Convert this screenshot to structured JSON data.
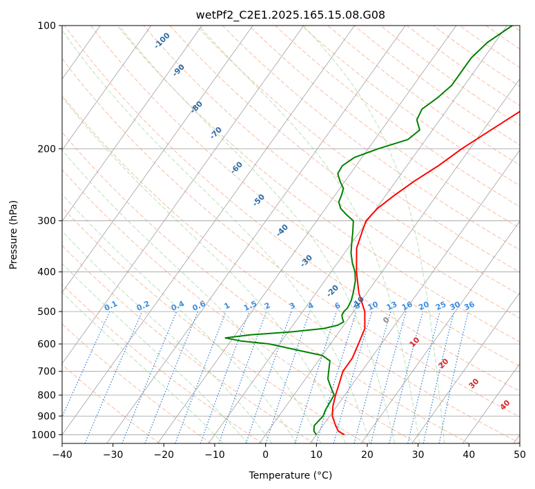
{
  "chart_data": {
    "type": "line",
    "title": "wetPf2_C2E1.2025.165.15.08.G08",
    "xlabel": "Temperature (°C)",
    "ylabel": "Pressure (hPa)",
    "xlim": [
      -40,
      50
    ],
    "ylim": [
      1050,
      100
    ],
    "y_scale": "log",
    "grid": true,
    "x_ticks": [
      -40,
      -30,
      -20,
      -10,
      0,
      10,
      20,
      30,
      40,
      50
    ],
    "y_ticks": [
      1000,
      900,
      800,
      700,
      600,
      500,
      400,
      300,
      200,
      100
    ],
    "colors": {
      "temperature": "#ff0000",
      "dewpoint": "#008000",
      "dry_adiabat": "#f4a582",
      "moist_adiabat": "#a6d8a6",
      "mixing_ratio": "#1f77d4",
      "isotherm": "#9e9e9e",
      "lcl_label": "#2b6ca3",
      "warm_label": "#d62728"
    },
    "series": [
      {
        "role": "temperature",
        "p": [
          1000,
          980,
          950,
          900,
          850,
          800,
          750,
          700,
          650,
          600,
          550,
          500,
          450,
          400,
          350,
          320,
          300,
          280,
          260,
          240,
          220,
          200,
          180,
          160,
          140,
          120,
          110,
          100
        ],
        "t": [
          15.5,
          13.8,
          12.5,
          10.5,
          9.2,
          8.2,
          7.3,
          6.3,
          6.3,
          5.5,
          4.6,
          2.2,
          -1.6,
          -5.0,
          -8.3,
          -9.5,
          -10.3,
          -9.8,
          -8.3,
          -6.4,
          -3.8,
          -1.6,
          1.5,
          5.0,
          10.0,
          15.0,
          17.5,
          20.5
        ]
      },
      {
        "role": "dewpoint",
        "p": [
          1000,
          980,
          950,
          900,
          870,
          850,
          800,
          760,
          730,
          700,
          680,
          660,
          640,
          620,
          600,
          590,
          580,
          570,
          560,
          550,
          540,
          530,
          520,
          510,
          500,
          490,
          470,
          450,
          420,
          400,
          380,
          360,
          340,
          320,
          300,
          290,
          280,
          270,
          260,
          250,
          240,
          230,
          220,
          210,
          200,
          190,
          180,
          170,
          160,
          150,
          140,
          130,
          120,
          110,
          100
        ],
        "t": [
          10.0,
          9.0,
          8.3,
          8.7,
          8.3,
          8.2,
          7.9,
          5.9,
          4.4,
          3.5,
          2.9,
          2.3,
          0.0,
          -6.0,
          -12.0,
          -18.0,
          -21.5,
          -17.0,
          -9.0,
          -3.5,
          -1.2,
          -0.5,
          -1.2,
          -1.8,
          -1.9,
          -1.7,
          -2.0,
          -2.7,
          -4.0,
          -5.3,
          -7.1,
          -8.7,
          -10.0,
          -11.3,
          -12.8,
          -15.0,
          -17.0,
          -18.3,
          -18.7,
          -19.3,
          -21.0,
          -22.5,
          -22.7,
          -21.5,
          -18.0,
          -13.5,
          -12.5,
          -14.5,
          -15.0,
          -13.5,
          -12.5,
          -12.5,
          -12.5,
          -11.5,
          -9.0
        ]
      }
    ],
    "reference_lines": {
      "dry_adiabats_theta_K": [
        250,
        260,
        270,
        280,
        290,
        300,
        310,
        320,
        330,
        340,
        350,
        360,
        370,
        380,
        390,
        400,
        410,
        420,
        430,
        440,
        450,
        460,
        470,
        480,
        490,
        500,
        510
      ],
      "moist_adiabats_start_C": [
        -10,
        -5,
        0,
        5,
        10,
        15,
        20,
        25,
        30,
        35
      ],
      "mixing_ratio_g_per_kg": [
        0.1,
        0.2,
        0.4,
        0.6,
        1,
        1.5,
        2,
        3,
        4,
        6,
        8,
        10,
        13,
        16,
        20,
        25,
        30,
        36
      ],
      "isotherms_C": [
        -120,
        -110,
        -100,
        -90,
        -80,
        -70,
        -60,
        -50,
        -40,
        -30,
        -20,
        -10,
        0,
        10,
        20,
        30,
        40,
        50
      ]
    },
    "annotations": {
      "mixing_ratio_labels": [
        "0.1",
        "0.2",
        "0.4",
        "0.6",
        "1",
        "1.5",
        "2",
        "3",
        "4",
        "6",
        "8",
        "10",
        "13",
        "16",
        "20",
        "25",
        "30",
        "36"
      ],
      "cold_isotherm_labels": [
        "-100",
        "-90",
        "-80",
        "-70",
        "-60",
        "-50",
        "-40",
        "-30",
        "-20",
        "-10"
      ],
      "zero_label": "0",
      "warm_isotherm_labels": [
        "10",
        "20",
        "30",
        "40"
      ]
    }
  }
}
